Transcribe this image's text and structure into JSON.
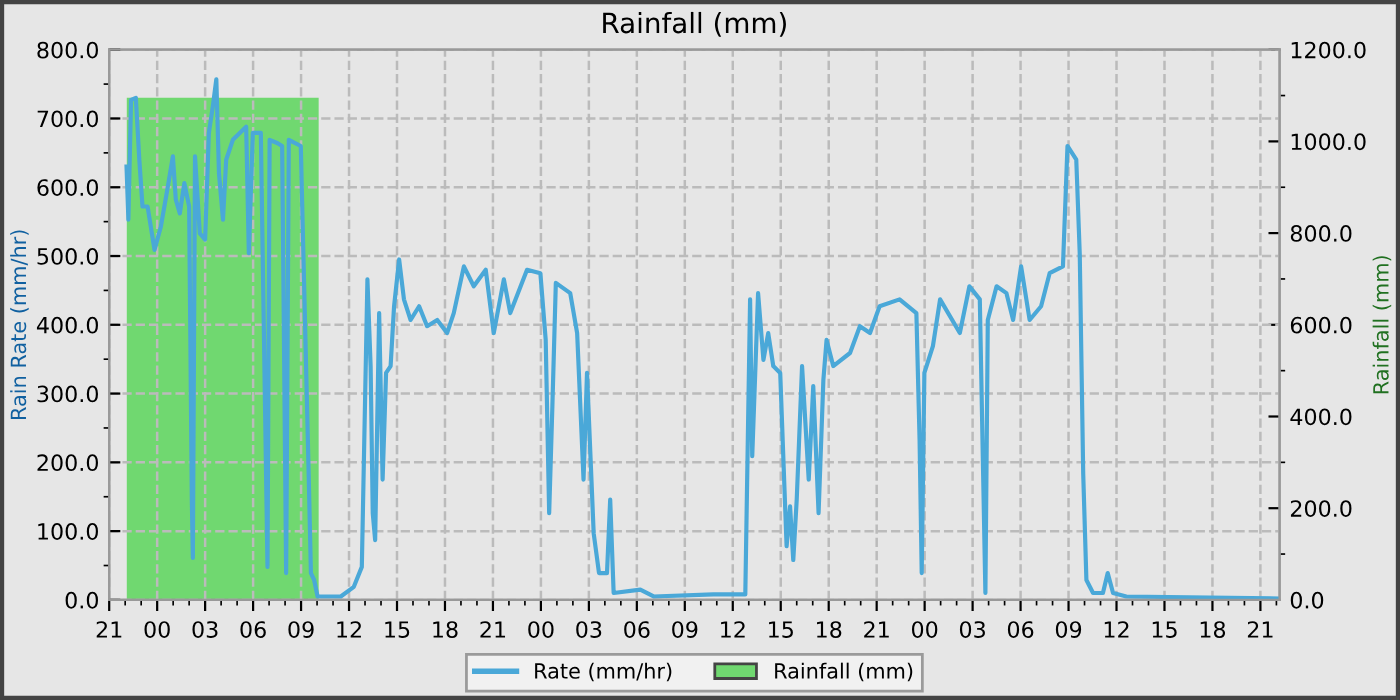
{
  "chart_data": {
    "type": "line",
    "title": "Rainfall (mm)",
    "ylabel": "Rain Rate (mm/hr)",
    "y2label": "Rainfall (mm)",
    "xlim": [
      "2000-01-01T21:00",
      "2000-01-04T22:12"
    ],
    "xticks": [
      {
        "value": "2000-01-01T21:00",
        "label": "21"
      },
      {
        "value": "2000-01-02T00:00",
        "label": "00"
      },
      {
        "value": "2000-01-02T03:00",
        "label": "03"
      },
      {
        "value": "2000-01-02T06:00",
        "label": "06"
      },
      {
        "value": "2000-01-02T09:00",
        "label": "09"
      },
      {
        "value": "2000-01-02T12:00",
        "label": "12"
      },
      {
        "value": "2000-01-02T15:00",
        "label": "15"
      },
      {
        "value": "2000-01-02T18:00",
        "label": "18"
      },
      {
        "value": "2000-01-02T21:00",
        "label": "21"
      },
      {
        "value": "2000-01-03T00:00",
        "label": "00"
      },
      {
        "value": "2000-01-03T03:00",
        "label": "03"
      },
      {
        "value": "2000-01-03T06:00",
        "label": "06"
      },
      {
        "value": "2000-01-03T09:00",
        "label": "09"
      },
      {
        "value": "2000-01-03T12:00",
        "label": "12"
      },
      {
        "value": "2000-01-03T15:00",
        "label": "15"
      },
      {
        "value": "2000-01-03T18:00",
        "label": "18"
      },
      {
        "value": "2000-01-03T21:00",
        "label": "21"
      },
      {
        "value": "2000-01-04T00:00",
        "label": "00"
      },
      {
        "value": "2000-01-04T03:00",
        "label": "03"
      },
      {
        "value": "2000-01-04T06:00",
        "label": "06"
      },
      {
        "value": "2000-01-04T09:00",
        "label": "09"
      },
      {
        "value": "2000-01-04T12:00",
        "label": "12"
      },
      {
        "value": "2000-01-04T15:00",
        "label": "15"
      },
      {
        "value": "2000-01-04T18:00",
        "label": "18"
      },
      {
        "value": "2000-01-04T21:00",
        "label": "21"
      }
    ],
    "ylim": [
      0,
      800
    ],
    "yticks": [
      {
        "value": 0,
        "label": "0.0"
      },
      {
        "value": 100,
        "label": "100.0"
      },
      {
        "value": 200,
        "label": "200.0"
      },
      {
        "value": 300,
        "label": "300.0"
      },
      {
        "value": 400,
        "label": "400.0"
      },
      {
        "value": 500,
        "label": "500.0"
      },
      {
        "value": 600,
        "label": "600.0"
      },
      {
        "value": 700,
        "label": "700.0"
      },
      {
        "value": 800,
        "label": "800.0"
      }
    ],
    "y2lim": [
      0,
      1200
    ],
    "y2ticks": [
      {
        "value": 0,
        "label": "0.0"
      },
      {
        "value": 200,
        "label": "200.0"
      },
      {
        "value": 400,
        "label": "400.0"
      },
      {
        "value": 600,
        "label": "600.0"
      },
      {
        "value": 800,
        "label": "800.0"
      },
      {
        "value": 1000,
        "label": "1000.0"
      },
      {
        "value": 1200,
        "label": "1200.0"
      }
    ],
    "grid": true,
    "legend": "bottom",
    "line_style": "solid",
    "marker": "none",
    "series": [
      {
        "name": "Rainfall (mm)",
        "type": "area",
        "axis": "y2",
        "color": "#70d870",
        "x": [
          "2000-01-01T22:06",
          "2000-01-02T10:06",
          "2000-01-02T10:06",
          "2000-01-04T22:12"
        ],
        "values": [
          1095,
          1095,
          0,
          0
        ]
      },
      {
        "name": "Rate (mm/hr)",
        "color": "#4aa8d8",
        "x": [
          "2000-01-01T22:05",
          "2000-01-01T22:12",
          "2000-01-01T22:22",
          "2000-01-01T22:40",
          "2000-01-01T22:53",
          "2000-01-01T23:05",
          "2000-01-01T23:24",
          "2000-01-01T23:50",
          "2000-01-02T00:14",
          "2000-01-02T00:40",
          "2000-01-02T00:59",
          "2000-01-02T01:10",
          "2000-01-02T01:25",
          "2000-01-02T01:42",
          "2000-01-02T02:00",
          "2000-01-02T02:10",
          "2000-01-02T02:14",
          "2000-01-02T02:22",
          "2000-01-02T02:40",
          "2000-01-02T03:00",
          "2000-01-02T03:14",
          "2000-01-02T03:29",
          "2000-01-02T03:42",
          "2000-01-02T03:52",
          "2000-01-02T04:07",
          "2000-01-02T04:19",
          "2000-01-02T04:44",
          "2000-01-02T05:10",
          "2000-01-02T05:34",
          "2000-01-02T05:44",
          "2000-01-02T05:59",
          "2000-01-02T06:29",
          "2000-01-02T06:54",
          "2000-01-02T07:02",
          "2000-01-02T07:32",
          "2000-01-02T07:49",
          "2000-01-02T08:04",
          "2000-01-02T08:14",
          "2000-01-02T08:59",
          "2000-01-02T09:29",
          "2000-01-02T09:37",
          "2000-01-02T09:49",
          "2000-01-02T10:02",
          "2000-01-02T11:29",
          "2000-01-02T12:18",
          "2000-01-02T12:48",
          "2000-01-02T13:09",
          "2000-01-02T13:21",
          "2000-01-02T13:29",
          "2000-01-02T13:38",
          "2000-01-02T13:53",
          "2000-01-02T14:06",
          "2000-01-02T14:19",
          "2000-01-02T14:36",
          "2000-01-02T14:49",
          "2000-01-02T15:08",
          "2000-01-02T15:26",
          "2000-01-02T15:51",
          "2000-01-02T16:23",
          "2000-01-02T16:53",
          "2000-01-02T17:31",
          "2000-01-02T18:08",
          "2000-01-02T18:33",
          "2000-01-02T19:11",
          "2000-01-02T19:48",
          "2000-01-02T20:33",
          "2000-01-02T21:03",
          "2000-01-02T21:41",
          "2000-01-02T22:05",
          "2000-01-02T23:08",
          "2000-01-02T23:58",
          "2000-01-03T00:18",
          "2000-01-03T00:31",
          "2000-01-03T00:43",
          "2000-01-03T00:56",
          "2000-01-03T01:50",
          "2000-01-03T02:16",
          "2000-01-03T02:40",
          "2000-01-03T02:53",
          "2000-01-03T03:18",
          "2000-01-03T03:38",
          "2000-01-03T04:08",
          "2000-01-03T04:20",
          "2000-01-03T04:33",
          "2000-01-03T06:13",
          "2000-01-03T07:03",
          "2000-01-03T10:47",
          "2000-01-03T12:47",
          "2000-01-03T13:05",
          "2000-01-03T13:13",
          "2000-01-03T13:35",
          "2000-01-03T13:55",
          "2000-01-03T14:13",
          "2000-01-03T14:32",
          "2000-01-03T14:58",
          "2000-01-03T15:22",
          "2000-01-03T15:35",
          "2000-01-03T15:47",
          "2000-01-03T16:00",
          "2000-01-03T16:20",
          "2000-01-03T16:45",
          "2000-01-03T17:02",
          "2000-01-03T17:22",
          "2000-01-03T17:40",
          "2000-01-03T17:52",
          "2000-01-03T18:17",
          "2000-01-03T19:20",
          "2000-01-03T19:57",
          "2000-01-03T20:35",
          "2000-01-03T21:11",
          "2000-01-03T22:26",
          "2000-01-03T23:29",
          "2000-01-03T23:41",
          "2000-01-03T23:49",
          "2000-01-03T23:59",
          "2000-01-04T00:31",
          "2000-01-04T00:58",
          "2000-01-04T02:12",
          "2000-01-04T02:48",
          "2000-01-04T03:27",
          "2000-01-04T03:48",
          "2000-01-04T03:57",
          "2000-01-04T04:30",
          "2000-01-04T05:07",
          "2000-01-04T05:32",
          "2000-01-04T06:02",
          "2000-01-04T06:34",
          "2000-01-04T07:17",
          "2000-01-04T07:49",
          "2000-01-04T08:39",
          "2000-01-04T08:56",
          "2000-01-04T09:29",
          "2000-01-04T09:42",
          "2000-01-04T09:55",
          "2000-01-04T10:07",
          "2000-01-04T10:32",
          "2000-01-04T11:09",
          "2000-01-04T11:27",
          "2000-01-04T11:47",
          "2000-01-04T12:37",
          "2000-01-04T22:12"
        ],
        "values": [
          630,
          553,
          727,
          730,
          640,
          572,
          572,
          509,
          543,
          601,
          645,
          582,
          562,
          606,
          572,
          146,
          61,
          645,
          533,
          524,
          679,
          718,
          757,
          620,
          553,
          640,
          669,
          679,
          688,
          504,
          679,
          679,
          48,
          669,
          664,
          660,
          39,
          669,
          660,
          175,
          39,
          29,
          5,
          5,
          19,
          48,
          466,
          340,
          126,
          87,
          417,
          175,
          330,
          340,
          427,
          495,
          437,
          407,
          427,
          398,
          407,
          388,
          417,
          485,
          456,
          480,
          388,
          466,
          417,
          480,
          475,
          378,
          126,
          281,
          461,
          446,
          388,
          175,
          330,
          97,
          39,
          39,
          146,
          10,
          15,
          5,
          8,
          8,
          437,
          209,
          446,
          349,
          388,
          340,
          330,
          78,
          136,
          58,
          146,
          340,
          175,
          311,
          126,
          320,
          378,
          340,
          359,
          398,
          388,
          427,
          437,
          417,
          233,
          39,
          330,
          369,
          437,
          388,
          456,
          437,
          10,
          407,
          456,
          446,
          407,
          485,
          407,
          427,
          475,
          485,
          660,
          640,
          504,
          184,
          29,
          10,
          10,
          39,
          10,
          5,
          2
        ]
      }
    ]
  }
}
